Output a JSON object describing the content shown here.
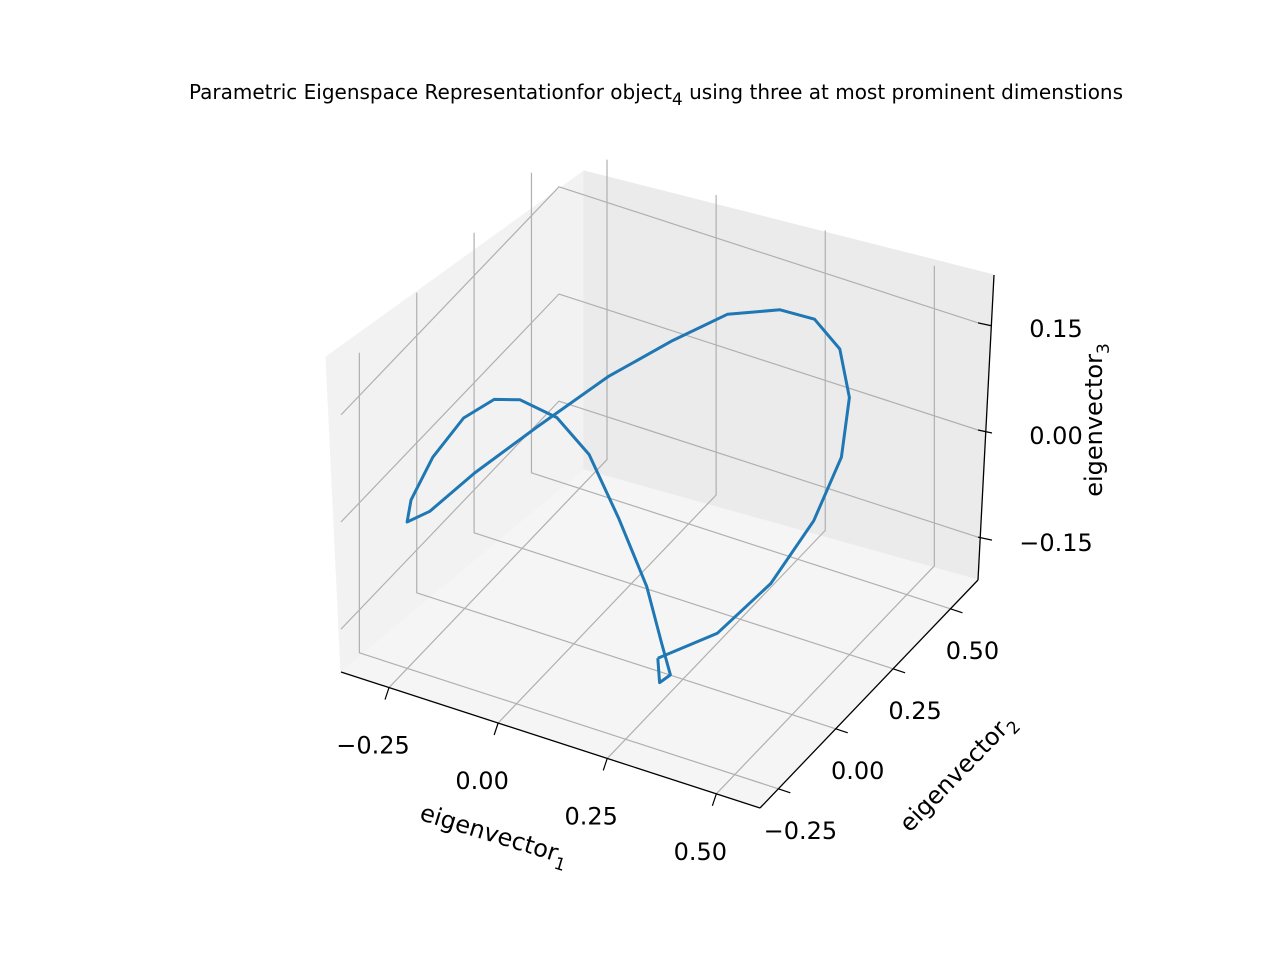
{
  "chart_data": {
    "type": "line3d",
    "title": {
      "before": "Parametric Eigenspace Representationfor object",
      "subscript": "4",
      "after": " using three at most prominent dimenstions"
    },
    "xlabel": {
      "base": "eigenvector",
      "subscript": "1"
    },
    "ylabel": {
      "base": "eigenvector",
      "subscript": "2"
    },
    "zlabel": {
      "base": "eigenvector",
      "subscript": "3"
    },
    "x_ticks": [
      "−0.25",
      "0.00",
      "0.25",
      "0.50"
    ],
    "y_ticks": [
      "−0.25",
      "0.00",
      "0.25",
      "0.50"
    ],
    "z_ticks": [
      "−0.15",
      "0.00",
      "0.15"
    ],
    "x_tick_values": [
      -0.25,
      0.0,
      0.25,
      0.5
    ],
    "y_tick_values": [
      -0.25,
      0.0,
      0.25,
      0.5
    ],
    "z_tick_values": [
      -0.15,
      0.0,
      0.15
    ],
    "xlim": [
      -0.36,
      0.6
    ],
    "ylim": [
      -0.33,
      0.62
    ],
    "zlim": [
      -0.21,
      0.21
    ],
    "grid": true,
    "line_color": "#1f77b4",
    "series": [
      {
        "points": [
          [
            0.35,
            -0.3,
            -0.06
          ],
          [
            0.46,
            -0.25,
            -0.02
          ],
          [
            0.53,
            -0.15,
            0.03
          ],
          [
            0.56,
            -0.02,
            0.08
          ],
          [
            0.55,
            0.12,
            0.12
          ],
          [
            0.5,
            0.25,
            0.15
          ],
          [
            0.42,
            0.36,
            0.165
          ],
          [
            0.32,
            0.44,
            0.16
          ],
          [
            0.22,
            0.48,
            0.14
          ],
          [
            0.1,
            0.48,
            0.11
          ],
          [
            0.0,
            0.43,
            0.07
          ],
          [
            -0.1,
            0.34,
            0.03
          ],
          [
            -0.2,
            0.22,
            -0.02
          ],
          [
            -0.28,
            0.1,
            -0.06
          ],
          [
            -0.33,
            0.0,
            -0.09
          ],
          [
            -0.34,
            -0.08,
            -0.08
          ],
          [
            -0.31,
            -0.12,
            -0.03
          ],
          [
            -0.26,
            -0.12,
            0.04
          ],
          [
            -0.2,
            -0.1,
            0.1
          ],
          [
            -0.13,
            -0.1,
            0.14
          ],
          [
            -0.06,
            -0.12,
            0.16
          ],
          [
            0.04,
            -0.15,
            0.165
          ],
          [
            0.14,
            -0.2,
            0.15
          ],
          [
            0.24,
            -0.26,
            0.1
          ],
          [
            0.33,
            -0.31,
            0.04
          ],
          [
            0.38,
            -0.34,
            -0.02
          ],
          [
            0.4,
            -0.34,
            -0.06
          ],
          [
            0.37,
            -0.33,
            -0.08
          ],
          [
            0.35,
            -0.3,
            -0.06
          ]
        ]
      }
    ]
  }
}
